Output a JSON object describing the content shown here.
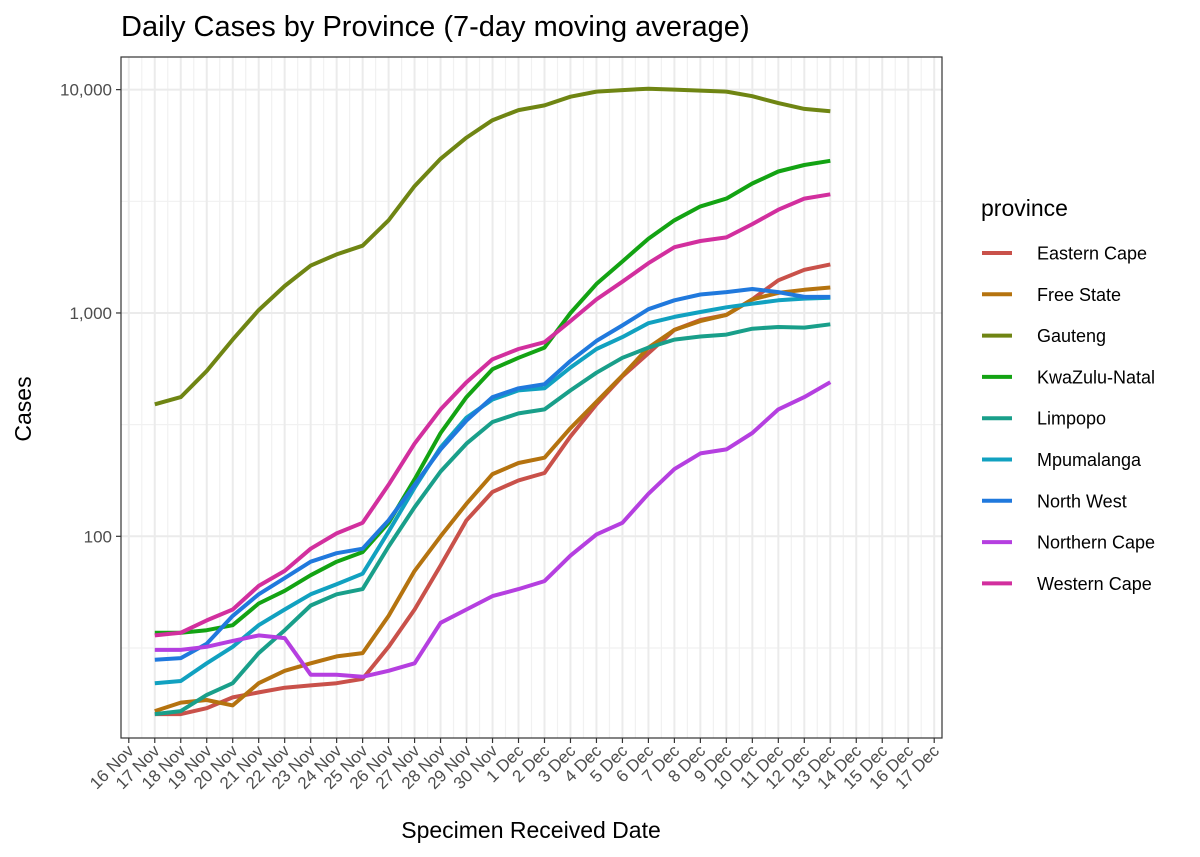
{
  "chart_data": {
    "type": "line",
    "title": "Daily Cases by Province (7-day moving average)",
    "xlabel": "Specimen Received Date",
    "ylabel": "Cases",
    "yscale": "log10",
    "ylim": [
      12.5,
      14000
    ],
    "y_ticks": [
      100,
      1000,
      10000
    ],
    "y_tick_labels": [
      "100",
      "1,000",
      "10,000"
    ],
    "x_tick_labels": [
      "16 Nov",
      "17 Nov",
      "18 Nov",
      "19 Nov",
      "20 Nov",
      "21 Nov",
      "22 Nov",
      "23 Nov",
      "24 Nov",
      "25 Nov",
      "26 Nov",
      "27 Nov",
      "28 Nov",
      "29 Nov",
      "30 Nov",
      "1 Dec",
      "2 Dec",
      "3 Dec",
      "4 Dec",
      "5 Dec",
      "6 Dec",
      "7 Dec",
      "8 Dec",
      "9 Dec",
      "10 Dec",
      "11 Dec",
      "12 Dec",
      "13 Dec",
      "14 Dec",
      "15 Dec",
      "16 Dec",
      "17 Dec"
    ],
    "x_index_range": [
      -0.3,
      31.3
    ],
    "data_start_index": 1,
    "grid": true,
    "legend_title": "province",
    "legend_position": "right",
    "series": [
      {
        "name": "Eastern Cape",
        "color": "#c9514a",
        "values": [
          16,
          16,
          17,
          19,
          20,
          21,
          21.5,
          22,
          23,
          32,
          47,
          74,
          118,
          158,
          178,
          192,
          280,
          390,
          520,
          660,
          840,
          930,
          980,
          1150,
          1400,
          1560,
          1650
        ]
      },
      {
        "name": "Free State",
        "color": "#b5730f",
        "values": [
          16.5,
          18,
          18.5,
          17.5,
          22,
          25,
          27,
          29,
          30,
          44,
          70,
          100,
          140,
          190,
          213,
          225,
          305,
          400,
          525,
          700,
          840,
          920,
          980,
          1150,
          1230,
          1270,
          1300
        ]
      },
      {
        "name": "Gauteng",
        "color": "#6f8513",
        "values": [
          390,
          420,
          550,
          760,
          1030,
          1320,
          1630,
          1830,
          2000,
          2600,
          3700,
          4900,
          6100,
          7300,
          8100,
          8500,
          9300,
          9800,
          9950,
          10100,
          10000,
          9900,
          9800,
          9350,
          8700,
          8200,
          8000
        ]
      },
      {
        "name": "KwaZulu-Natal",
        "color": "#13a313",
        "values": [
          37,
          37,
          38,
          40,
          50,
          57,
          67,
          77,
          85,
          115,
          180,
          290,
          420,
          560,
          630,
          700,
          1000,
          1350,
          1700,
          2150,
          2600,
          3000,
          3250,
          3800,
          4300,
          4600,
          4800
        ]
      },
      {
        "name": "Limpopo",
        "color": "#199f8a",
        "values": [
          16,
          16.5,
          19.5,
          22,
          30,
          38,
          49,
          55,
          58,
          90,
          135,
          195,
          260,
          325,
          355,
          370,
          450,
          540,
          630,
          700,
          760,
          785,
          800,
          850,
          865,
          860,
          890
        ]
      },
      {
        "name": "Mpumalanga",
        "color": "#11a1c0",
        "values": [
          22,
          22.5,
          27,
          32,
          40,
          47,
          55,
          61,
          68,
          105,
          165,
          250,
          340,
          410,
          450,
          460,
          570,
          690,
          780,
          900,
          960,
          1010,
          1060,
          1100,
          1140,
          1160,
          1170
        ]
      },
      {
        "name": "North West",
        "color": "#2079dd",
        "values": [
          28,
          28.5,
          33,
          44,
          55,
          65,
          77,
          84,
          88,
          118,
          170,
          245,
          330,
          420,
          460,
          480,
          610,
          750,
          880,
          1040,
          1140,
          1210,
          1240,
          1280,
          1240,
          1180,
          1180
        ]
      },
      {
        "name": "Northern Cape",
        "color": "#b53fe0",
        "values": [
          31,
          31,
          32,
          34,
          36,
          35,
          24,
          24,
          23.5,
          25,
          27,
          41,
          47,
          54,
          58,
          63,
          82,
          102,
          115,
          155,
          200,
          235,
          245,
          290,
          370,
          420,
          490
        ]
      },
      {
        "name": "Western Cape",
        "color": "#d22f9e",
        "values": [
          36,
          37,
          42,
          47,
          60,
          70,
          88,
          103,
          115,
          170,
          260,
          370,
          490,
          620,
          690,
          740,
          920,
          1150,
          1380,
          1670,
          1970,
          2100,
          2180,
          2500,
          2900,
          3250,
          3400
        ]
      }
    ]
  }
}
